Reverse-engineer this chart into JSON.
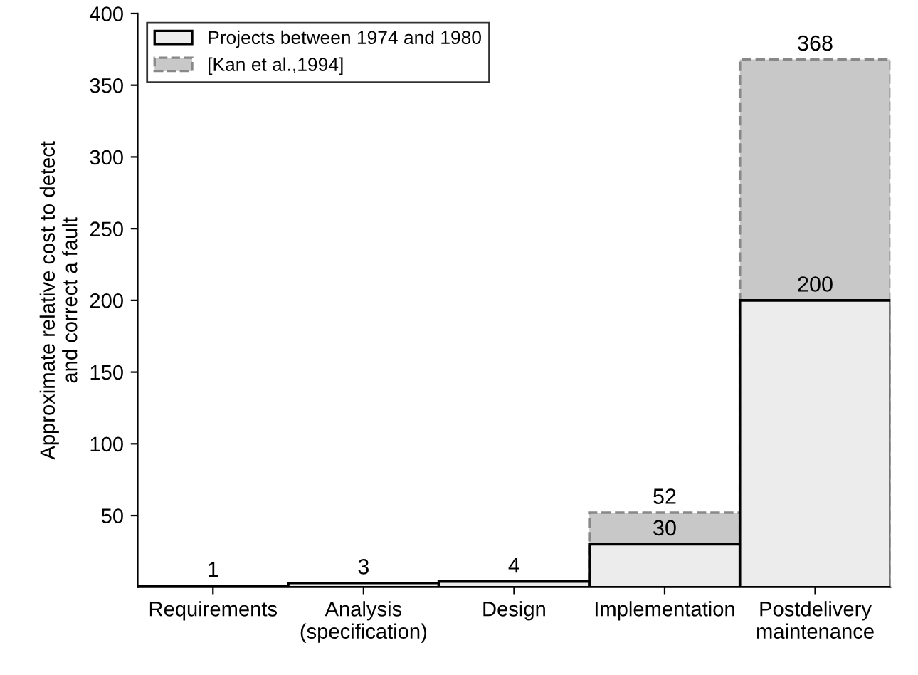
{
  "chart_data": {
    "type": "bar",
    "ylabel": "Approximate relative cost to detect\nand correct a fault",
    "categories": [
      "Requirements",
      "Analysis\n(specification)",
      "Design",
      "Implementation",
      "Postdelivery\nmaintenance"
    ],
    "series": [
      {
        "name": "[Kan et al.,1994]",
        "color": "#c8c8c8",
        "line_style": "dashed",
        "values": [
          null,
          null,
          null,
          52,
          368
        ]
      },
      {
        "name": "Projects between 1974 and 1980",
        "color": "#ececec",
        "line_style": "solid",
        "values": [
          1,
          3,
          4,
          30,
          200
        ]
      }
    ],
    "ylim": [
      0,
      400
    ],
    "yticks": [
      50,
      100,
      150,
      200,
      250,
      300,
      350,
      400
    ],
    "data_labels": true,
    "legend": "top left",
    "grid": false
  }
}
